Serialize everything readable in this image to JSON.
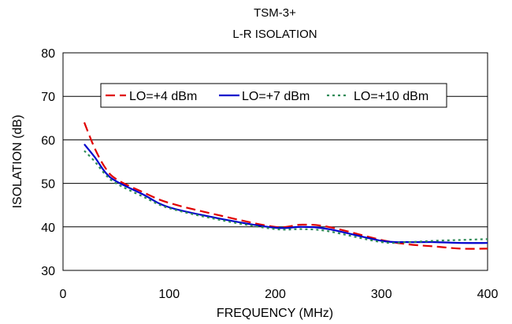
{
  "chart_data": {
    "type": "line",
    "title": "TSM-3+",
    "subtitle": "L-R ISOLATION",
    "xlabel": "FREQUENCY (MHz)",
    "ylabel": "ISOLATION (dB)",
    "xlim": [
      0,
      400
    ],
    "ylim": [
      30,
      80
    ],
    "xticks": [
      0,
      100,
      200,
      300,
      400
    ],
    "yticks": [
      30,
      40,
      50,
      60,
      70,
      80
    ],
    "grid": "horizontal",
    "legend": "top-center",
    "series": [
      {
        "name": "LO=+4 dBm",
        "color": "#e00000",
        "dash": "dashed",
        "x": [
          20,
          30,
          40,
          50,
          75,
          100,
          150,
          200,
          225,
          250,
          300,
          325,
          350,
          375,
          400
        ],
        "y": [
          64,
          58,
          53.5,
          51,
          48,
          45.5,
          42.5,
          40,
          40.5,
          40,
          37,
          36,
          35.5,
          35,
          35
        ]
      },
      {
        "name": "LO=+7 dBm",
        "color": "#0000cc",
        "dash": "solid",
        "x": [
          20,
          30,
          40,
          50,
          75,
          100,
          150,
          200,
          225,
          250,
          300,
          325,
          350,
          375,
          400
        ],
        "y": [
          59,
          56,
          52.5,
          50.5,
          47.5,
          44.5,
          41.8,
          39.8,
          40,
          39.5,
          36.8,
          36.5,
          36.5,
          36.3,
          36.3
        ]
      },
      {
        "name": "LO=+10 dBm",
        "color": "#2e8b57",
        "dash": "dotted",
        "x": [
          20,
          30,
          40,
          50,
          75,
          100,
          150,
          200,
          225,
          250,
          300,
          325,
          350,
          375,
          400
        ],
        "y": [
          57.5,
          55,
          52,
          50,
          47,
          44.3,
          41.5,
          39.5,
          39.5,
          39,
          36.5,
          36.5,
          36.8,
          37,
          37.2
        ]
      }
    ]
  }
}
